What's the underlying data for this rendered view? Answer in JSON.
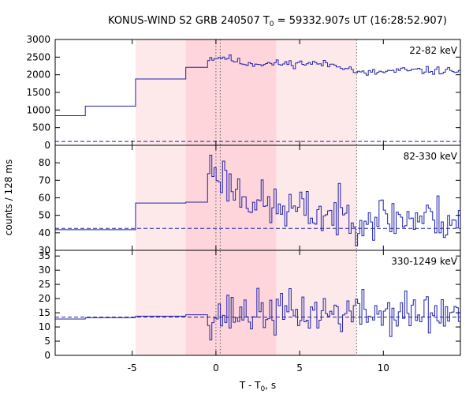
{
  "chart_data": {
    "type": "line",
    "title": "KONUS-WIND S2 GRB 240507 T",
    "title_sub": "0",
    "title_rest": " = 59332.907s UT (16:28:52.907)",
    "xlabel": "T - T",
    "xlabel_sub": "0",
    "xlabel_rest": ", s",
    "ylabel": "counts / 128 ms",
    "xlim": [
      -9.6,
      14.6
    ],
    "x_ticks": [
      -5,
      0,
      5,
      10
    ],
    "x_tick_labels": [
      "-5",
      "0",
      "5",
      "10"
    ],
    "shaded_intervals": [
      {
        "start": -4.8,
        "end": 8.4,
        "color": "#fde8ea"
      },
      {
        "start": -1.8,
        "end": 3.6,
        "color": "#fdd5da"
      }
    ],
    "vertical_markers": [
      0.0,
      0.256,
      8.4
    ],
    "panels": [
      {
        "label": "22-82 keV",
        "ylim": [
          0,
          3000
        ],
        "y_ticks": [
          0,
          500,
          1000,
          1500,
          2000,
          2500,
          3000
        ],
        "y_tick_labels": [
          "0",
          "500",
          "1000",
          "1500",
          "2000",
          "2500",
          "3000"
        ],
        "background": 110,
        "seed": 11,
        "noise": 55,
        "coarse_steps": [
          {
            "x": -9.6,
            "y": 840
          },
          {
            "x": -7.8,
            "y": 1110
          },
          {
            "x": -4.8,
            "y": 1880
          },
          {
            "x": -1.8,
            "y": 2210
          }
        ],
        "fine_start": -0.5,
        "fine_profile": [
          {
            "x": -0.5,
            "y": 2470
          },
          {
            "x": 0.5,
            "y": 2500
          },
          {
            "x": 1.5,
            "y": 2330
          },
          {
            "x": 3.5,
            "y": 2310
          },
          {
            "x": 5.5,
            "y": 2330
          },
          {
            "x": 7.5,
            "y": 2260
          },
          {
            "x": 8.6,
            "y": 2030
          },
          {
            "x": 11.0,
            "y": 2120
          },
          {
            "x": 14.6,
            "y": 2110
          }
        ]
      },
      {
        "label": "82-330 keV",
        "ylim": [
          30,
          90
        ],
        "y_ticks": [
          30,
          40,
          50,
          60,
          70,
          80
        ],
        "y_tick_labels": [
          "30",
          "40",
          "50",
          "60",
          "70",
          "80"
        ],
        "background": 42.5,
        "seed": 23,
        "noise": 6.5,
        "coarse_steps": [
          {
            "x": -9.6,
            "y": 41.8
          },
          {
            "x": -4.8,
            "y": 57.0
          },
          {
            "x": -1.8,
            "y": 57.5
          }
        ],
        "fine_start": -0.5,
        "fine_profile": [
          {
            "x": -0.5,
            "y": 78
          },
          {
            "x": 0.3,
            "y": 73
          },
          {
            "x": 1.0,
            "y": 65
          },
          {
            "x": 3.0,
            "y": 55
          },
          {
            "x": 6.0,
            "y": 51
          },
          {
            "x": 9.0,
            "y": 49
          },
          {
            "x": 14.6,
            "y": 48
          }
        ]
      },
      {
        "label": "330-1249 keV",
        "ylim": [
          0,
          37
        ],
        "y_ticks": [
          0,
          5,
          10,
          15,
          20,
          25,
          30,
          35
        ],
        "y_tick_labels": [
          "0",
          "5",
          "10",
          "15",
          "20",
          "25",
          "30",
          "35"
        ],
        "background": 13.5,
        "seed": 37,
        "noise": 3.8,
        "coarse_steps": [
          {
            "x": -9.6,
            "y": 12.8
          },
          {
            "x": -7.8,
            "y": 13.3
          },
          {
            "x": -4.8,
            "y": 13.8
          },
          {
            "x": -1.8,
            "y": 14.3
          }
        ],
        "fine_start": -0.5,
        "fine_profile": [
          {
            "x": -0.5,
            "y": 14.0
          },
          {
            "x": 2.0,
            "y": 15.0
          },
          {
            "x": 8.0,
            "y": 15.0
          },
          {
            "x": 14.6,
            "y": 14.5
          }
        ]
      }
    ],
    "line_color": "#2222aa",
    "background_line_color": "#2222aa",
    "marker_color": "#555555",
    "grid": false,
    "legend": "none"
  }
}
